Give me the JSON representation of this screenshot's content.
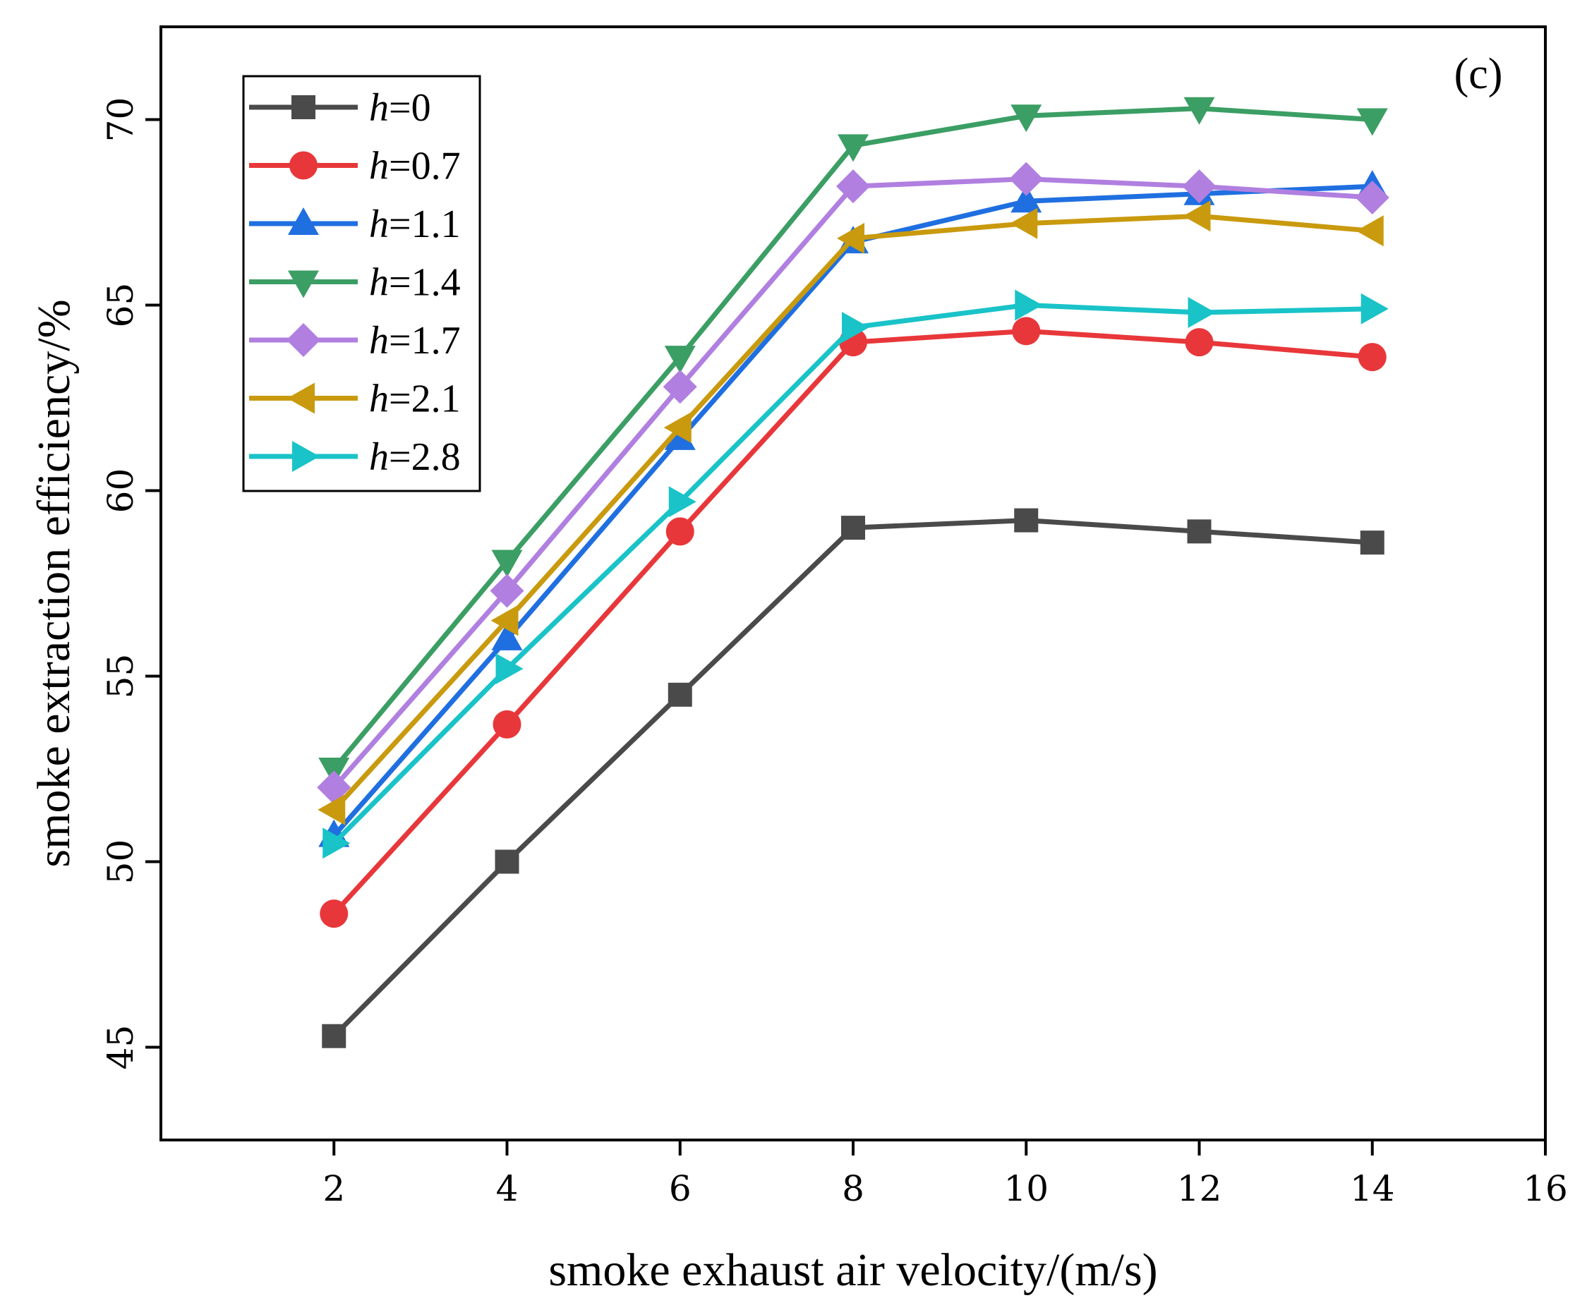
{
  "chart_data": {
    "type": "line",
    "panel_label": "(c)",
    "xlabel": "smoke exhaust air velocity/(m/s)",
    "ylabel": "smoke extraction efficiency/%",
    "xlim": [
      0,
      16
    ],
    "ylim": [
      42.5,
      72.5
    ],
    "x_ticks": [
      2,
      4,
      6,
      8,
      10,
      12,
      14,
      16
    ],
    "y_ticks": [
      45,
      50,
      55,
      60,
      65,
      70
    ],
    "x_tick_labels": [
      "2",
      "4",
      "6",
      "8",
      "10",
      "12",
      "14",
      "16"
    ],
    "y_tick_labels": [
      "45",
      "50",
      "55",
      "60",
      "65",
      "70"
    ],
    "x": [
      2,
      4,
      6,
      8,
      10,
      12,
      14
    ],
    "legend_placement": "top-left",
    "series": [
      {
        "name_var": "h",
        "name_value": "=0",
        "color": "#4a4a4a",
        "marker": "square",
        "values": [
          45.3,
          50.0,
          54.5,
          59.0,
          59.2,
          58.9,
          58.6
        ]
      },
      {
        "name_var": "h",
        "name_value": "=0.7",
        "color": "#e8373a",
        "marker": "circle",
        "values": [
          48.6,
          53.7,
          58.9,
          64.0,
          64.3,
          64.0,
          63.6
        ]
      },
      {
        "name_var": "h",
        "name_value": "=1.1",
        "color": "#1f6fe0",
        "marker": "triangle-up",
        "values": [
          50.7,
          56.0,
          61.4,
          66.7,
          67.8,
          68.0,
          68.2
        ]
      },
      {
        "name_var": "h",
        "name_value": "=1.4",
        "color": "#3b9e64",
        "marker": "triangle-down",
        "values": [
          52.5,
          58.1,
          63.6,
          69.3,
          70.1,
          70.3,
          70.0
        ]
      },
      {
        "name_var": "h",
        "name_value": "=1.7",
        "color": "#b07fe0",
        "marker": "diamond",
        "values": [
          52.0,
          57.3,
          62.8,
          68.2,
          68.4,
          68.2,
          67.9
        ]
      },
      {
        "name_var": "h",
        "name_value": "=2.1",
        "color": "#c99a0e",
        "marker": "triangle-left",
        "values": [
          51.4,
          56.5,
          61.7,
          66.8,
          67.2,
          67.4,
          67.0
        ]
      },
      {
        "name_var": "h",
        "name_value": "=2.8",
        "color": "#19c3c8",
        "marker": "triangle-right",
        "values": [
          50.5,
          55.2,
          59.7,
          64.4,
          65.0,
          64.8,
          64.9
        ]
      }
    ]
  }
}
